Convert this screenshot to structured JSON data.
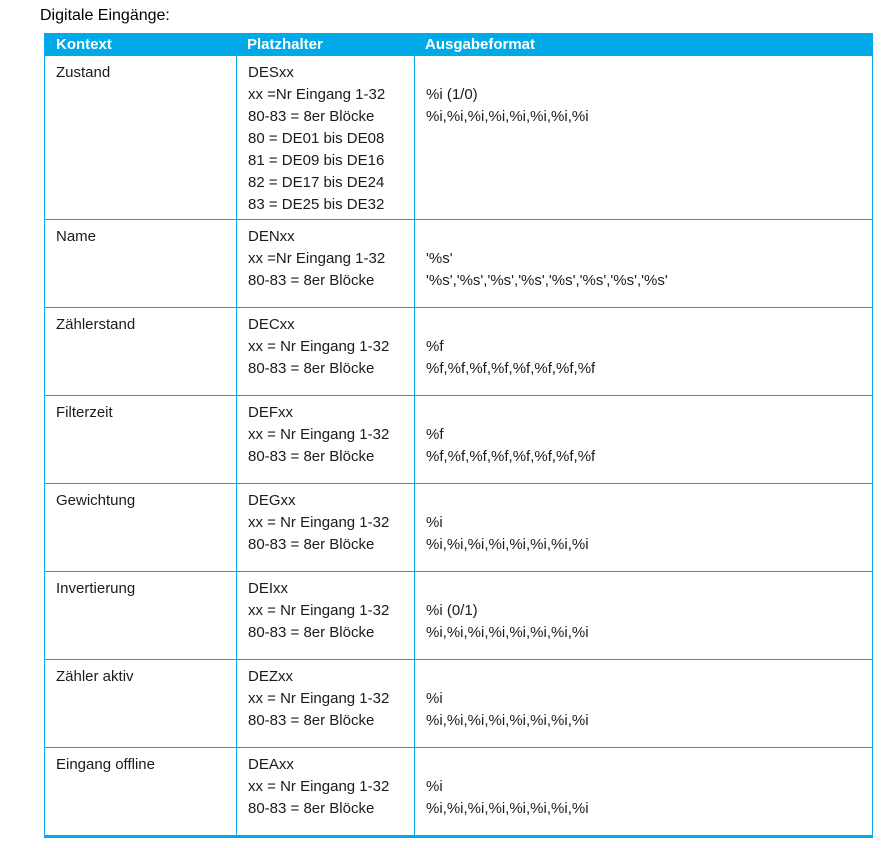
{
  "page": {
    "title": "Digitale Eingänge:"
  },
  "table": {
    "accent_color": "#00a9e8",
    "header_text_color": "#ffffff",
    "columns": [
      "Kontext",
      "Platzhalter",
      "Ausgabeformat"
    ],
    "rows": [
      {
        "kontext": "Zustand",
        "platzhalter": [
          "DESxx",
          "xx =Nr Eingang 1-32",
          "80-83 = 8er Blöcke",
          "80 = DE01 bis DE08",
          "81 = DE09 bis DE16",
          "82 = DE17 bis DE24",
          "83 = DE25 bis DE32"
        ],
        "ausgabeformat": [
          "",
          "%i (1/0)",
          "%i,%i,%i,%i,%i,%i,%i,%i"
        ]
      },
      {
        "kontext": "Name",
        "platzhalter": [
          "DENxx",
          "xx =Nr Eingang 1-32",
          "80-83 = 8er Blöcke"
        ],
        "ausgabeformat": [
          "",
          "'%s'",
          "'%s','%s','%s','%s','%s','%s','%s','%s'"
        ]
      },
      {
        "kontext": "Zählerstand",
        "platzhalter": [
          "DECxx",
          "xx = Nr Eingang 1-32",
          "80-83 = 8er Blöcke"
        ],
        "ausgabeformat": [
          "",
          "%f",
          "%f,%f,%f,%f,%f,%f,%f,%f"
        ]
      },
      {
        "kontext": "Filterzeit",
        "platzhalter": [
          "DEFxx",
          "xx = Nr Eingang 1-32",
          "80-83 = 8er Blöcke"
        ],
        "ausgabeformat": [
          "",
          "%f",
          "%f,%f,%f,%f,%f,%f,%f,%f"
        ]
      },
      {
        "kontext": "Gewichtung",
        "platzhalter": [
          "DEGxx",
          "xx = Nr Eingang 1-32",
          "80-83 = 8er Blöcke"
        ],
        "ausgabeformat": [
          "",
          "%i",
          "%i,%i,%i,%i,%i,%i,%i,%i"
        ]
      },
      {
        "kontext": "Invertierung",
        "platzhalter": [
          "DEIxx",
          "xx = Nr Eingang 1-32",
          "80-83 = 8er Blöcke"
        ],
        "ausgabeformat": [
          "",
          "%i (0/1)",
          "%i,%i,%i,%i,%i,%i,%i,%i"
        ]
      },
      {
        "kontext": "Zähler aktiv",
        "platzhalter": [
          "DEZxx",
          "xx = Nr Eingang 1-32",
          "80-83 = 8er Blöcke"
        ],
        "ausgabeformat": [
          "",
          "%i",
          "%i,%i,%i,%i,%i,%i,%i,%i"
        ]
      },
      {
        "kontext": "Eingang offline",
        "platzhalter": [
          "DEAxx",
          "xx = Nr Eingang 1-32",
          "80-83 = 8er Blöcke"
        ],
        "ausgabeformat": [
          "",
          "%i",
          "%i,%i,%i,%i,%i,%i,%i,%i"
        ]
      }
    ]
  }
}
